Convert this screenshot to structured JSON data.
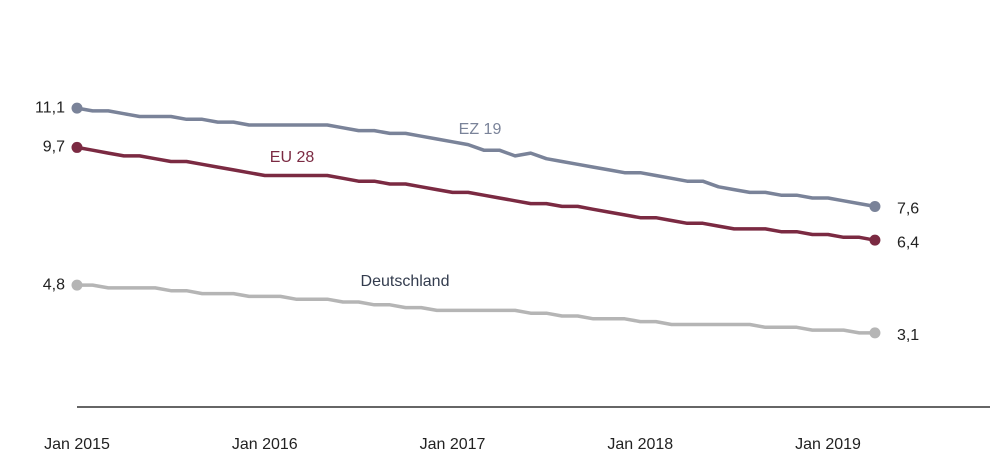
{
  "chart_data": {
    "type": "line",
    "x": [
      "2015-01",
      "2015-02",
      "2015-03",
      "2015-04",
      "2015-05",
      "2015-06",
      "2015-07",
      "2015-08",
      "2015-09",
      "2015-10",
      "2015-11",
      "2015-12",
      "2016-01",
      "2016-02",
      "2016-03",
      "2016-04",
      "2016-05",
      "2016-06",
      "2016-07",
      "2016-08",
      "2016-09",
      "2016-10",
      "2016-11",
      "2016-12",
      "2017-01",
      "2017-02",
      "2017-03",
      "2017-04",
      "2017-05",
      "2017-06",
      "2017-07",
      "2017-08",
      "2017-09",
      "2017-10",
      "2017-11",
      "2017-12",
      "2018-01",
      "2018-02",
      "2018-03",
      "2018-04",
      "2018-05",
      "2018-06",
      "2018-07",
      "2018-08",
      "2018-09",
      "2018-10",
      "2018-11",
      "2018-12",
      "2019-01",
      "2019-02",
      "2019-03",
      "2019-04"
    ],
    "xticks": [
      {
        "value": "2015-01",
        "label": "Jan 2015"
      },
      {
        "value": "2016-01",
        "label": "Jan 2016"
      },
      {
        "value": "2017-01",
        "label": "Jan 2017"
      },
      {
        "value": "2018-01",
        "label": "Jan 2018"
      },
      {
        "value": "2019-01",
        "label": "Jan 2019"
      }
    ],
    "ylim": [
      0,
      14
    ],
    "series": [
      {
        "name": "EZ 19",
        "color": "#7a8399",
        "label_color": "#7a8399",
        "values": [
          11.1,
          11.0,
          11.0,
          10.9,
          10.8,
          10.8,
          10.8,
          10.7,
          10.7,
          10.6,
          10.6,
          10.5,
          10.5,
          10.5,
          10.5,
          10.5,
          10.5,
          10.4,
          10.3,
          10.3,
          10.2,
          10.2,
          10.1,
          10.0,
          9.9,
          9.8,
          9.6,
          9.6,
          9.4,
          9.5,
          9.3,
          9.2,
          9.1,
          9.0,
          8.9,
          8.8,
          8.8,
          8.7,
          8.6,
          8.5,
          8.5,
          8.3,
          8.2,
          8.1,
          8.1,
          8.0,
          8.0,
          7.9,
          7.9,
          7.8,
          7.7,
          7.6
        ],
        "value_labels": [
          "11,1",
          null,
          null,
          null,
          null,
          null,
          null,
          null,
          null,
          null,
          null,
          null,
          null,
          null,
          null,
          null,
          null,
          null,
          null,
          null,
          null,
          null,
          null,
          null,
          null,
          null,
          null,
          null,
          null,
          null,
          null,
          null,
          null,
          null,
          null,
          null,
          null,
          null,
          null,
          null,
          null,
          null,
          null,
          null,
          null,
          null,
          null,
          null,
          null,
          null,
          null,
          "7,6"
        ]
      },
      {
        "name": "EU 28",
        "color": "#7b2a42",
        "label_color": "#7b2a42",
        "values": [
          9.7,
          9.6,
          9.5,
          9.4,
          9.4,
          9.3,
          9.2,
          9.2,
          9.1,
          9.0,
          8.9,
          8.8,
          8.7,
          8.7,
          8.7,
          8.7,
          8.7,
          8.6,
          8.5,
          8.5,
          8.4,
          8.4,
          8.3,
          8.2,
          8.1,
          8.1,
          8.0,
          7.9,
          7.8,
          7.7,
          7.7,
          7.6,
          7.6,
          7.5,
          7.4,
          7.3,
          7.2,
          7.2,
          7.1,
          7.0,
          7.0,
          6.9,
          6.8,
          6.8,
          6.8,
          6.7,
          6.7,
          6.6,
          6.6,
          6.5,
          6.5,
          6.4
        ],
        "value_labels": [
          "9,7",
          null,
          null,
          null,
          null,
          null,
          null,
          null,
          null,
          null,
          null,
          null,
          null,
          null,
          null,
          null,
          null,
          null,
          null,
          null,
          null,
          null,
          null,
          null,
          null,
          null,
          null,
          null,
          null,
          null,
          null,
          null,
          null,
          null,
          null,
          null,
          null,
          null,
          null,
          null,
          null,
          null,
          null,
          null,
          null,
          null,
          null,
          null,
          null,
          null,
          null,
          "6,4"
        ]
      },
      {
        "name": "Deutschland",
        "color": "#b5b5b5",
        "label_color": "#333c4e",
        "values": [
          4.8,
          4.8,
          4.7,
          4.7,
          4.7,
          4.7,
          4.6,
          4.6,
          4.5,
          4.5,
          4.5,
          4.4,
          4.4,
          4.4,
          4.3,
          4.3,
          4.3,
          4.2,
          4.2,
          4.1,
          4.1,
          4.0,
          4.0,
          3.9,
          3.9,
          3.9,
          3.9,
          3.9,
          3.9,
          3.8,
          3.8,
          3.7,
          3.7,
          3.6,
          3.6,
          3.6,
          3.5,
          3.5,
          3.4,
          3.4,
          3.4,
          3.4,
          3.4,
          3.4,
          3.3,
          3.3,
          3.3,
          3.2,
          3.2,
          3.2,
          3.1,
          3.1
        ],
        "value_labels": [
          "4,8",
          null,
          null,
          null,
          null,
          null,
          null,
          null,
          null,
          null,
          null,
          null,
          null,
          null,
          null,
          null,
          null,
          null,
          null,
          null,
          null,
          null,
          null,
          null,
          null,
          null,
          null,
          null,
          null,
          null,
          null,
          null,
          null,
          null,
          null,
          null,
          null,
          null,
          null,
          null,
          null,
          null,
          null,
          null,
          null,
          null,
          null,
          null,
          null,
          null,
          null,
          "3,1"
        ]
      }
    ]
  }
}
